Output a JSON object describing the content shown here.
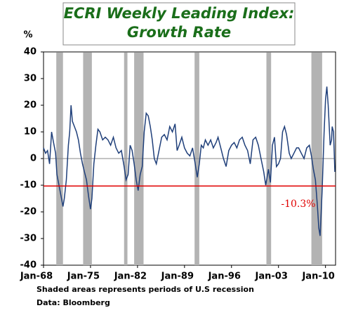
{
  "chart_data": {
    "type": "line",
    "title_lines": [
      "ECRI Weekly Leading Index:",
      "Growth Rate"
    ],
    "y_unit": "%",
    "footnotes": [
      "Shaded areas represents periods of U.S recession",
      "Data: Bloomberg"
    ],
    "x": [
      1968.0,
      1968.3,
      1968.6,
      1968.9,
      1969.2,
      1969.5,
      1969.8,
      1970.0,
      1970.3,
      1970.6,
      1970.9,
      1971.1,
      1971.4,
      1971.7,
      1971.9,
      1972.1,
      1972.3,
      1972.6,
      1972.9,
      1973.2,
      1973.5,
      1973.8,
      1974.1,
      1974.4,
      1974.7,
      1975.0,
      1975.2,
      1975.5,
      1975.8,
      1976.1,
      1976.4,
      1976.8,
      1977.2,
      1977.6,
      1978.0,
      1978.4,
      1978.8,
      1979.2,
      1979.6,
      1980.0,
      1980.3,
      1980.6,
      1980.9,
      1981.2,
      1981.5,
      1981.8,
      1982.1,
      1982.4,
      1982.7,
      1983.0,
      1983.3,
      1983.6,
      1983.9,
      1984.2,
      1984.5,
      1984.8,
      1985.2,
      1985.6,
      1986.0,
      1986.4,
      1986.8,
      1987.2,
      1987.6,
      1987.9,
      1988.2,
      1988.6,
      1989.0,
      1989.4,
      1989.8,
      1990.2,
      1990.6,
      1990.9,
      1991.2,
      1991.5,
      1991.8,
      1992.1,
      1992.5,
      1992.9,
      1993.3,
      1993.7,
      1994.0,
      1994.4,
      1994.8,
      1995.2,
      1995.6,
      1996.0,
      1996.4,
      1996.8,
      1997.2,
      1997.6,
      1998.0,
      1998.4,
      1998.8,
      1999.2,
      1999.6,
      2000.0,
      2000.4,
      2000.8,
      2001.1,
      2001.5,
      2001.8,
      2002.1,
      2002.4,
      2002.7,
      2003.0,
      2003.3,
      2003.6,
      2003.9,
      2004.2,
      2004.6,
      2004.9,
      2005.3,
      2005.7,
      2006.0,
      2006.4,
      2006.8,
      2007.2,
      2007.6,
      2007.9,
      2008.2,
      2008.5,
      2008.8,
      2009.0,
      2009.2,
      2009.5,
      2009.8,
      2010.0,
      2010.2,
      2010.4,
      2010.7,
      2010.9,
      2011.0,
      2011.2,
      2011.4
    ],
    "values": [
      4,
      2,
      3,
      -2,
      10,
      6,
      2,
      -6,
      -10,
      -14,
      -18,
      -15,
      -8,
      5,
      10,
      20,
      14,
      12,
      10,
      7,
      2,
      -2,
      -5,
      -8,
      -14,
      -19,
      -15,
      -2,
      5,
      11,
      10,
      7,
      8,
      7,
      5,
      8,
      4,
      2,
      3,
      -3,
      -8,
      -6,
      5,
      3,
      -2,
      -8,
      -12,
      -6,
      -3,
      10,
      17,
      16,
      12,
      7,
      0,
      -2,
      3,
      8,
      9,
      7,
      12,
      10,
      13,
      3,
      5,
      8,
      4,
      2,
      1,
      4,
      -2,
      -7,
      -2,
      5,
      4,
      7,
      5,
      7,
      4,
      6,
      8,
      4,
      0,
      -3,
      3,
      5,
      6,
      4,
      7,
      8,
      5,
      3,
      -2,
      7,
      8,
      5,
      0,
      -5,
      -10,
      -4,
      -9,
      5,
      8,
      -3,
      -2,
      0,
      10,
      12,
      9,
      2,
      0,
      2,
      4,
      4,
      2,
      0,
      4,
      5,
      1,
      -4,
      -8,
      -18,
      -26,
      -29,
      -12,
      10,
      22,
      27,
      20,
      5,
      7,
      12,
      10,
      -5
    ],
    "color": "#1f3f7a",
    "recessions": [
      [
        1969.9,
        1970.9
      ],
      [
        1973.9,
        1975.2
      ],
      [
        1980.0,
        1980.5
      ],
      [
        1981.5,
        1982.9
      ],
      [
        1990.5,
        1991.2
      ],
      [
        2001.2,
        2001.9
      ],
      [
        2007.9,
        2009.5
      ]
    ],
    "recession_color": "#b3b3b3",
    "threshold": {
      "value": -10.3,
      "label": "-10.3%"
    },
    "threshold_color": "#e00000",
    "xlim": [
      1968,
      2011.5
    ],
    "xticks": [
      {
        "value": 1968,
        "label": "Jan-68"
      },
      {
        "value": 1975,
        "label": "Jan-75"
      },
      {
        "value": 1982,
        "label": "Jan-82"
      },
      {
        "value": 1989,
        "label": "Jan-89"
      },
      {
        "value": 1996,
        "label": "Jan-96"
      },
      {
        "value": 2003,
        "label": "Jan-03"
      },
      {
        "value": 2010,
        "label": "Jan-10"
      }
    ],
    "ylim": [
      -40,
      40
    ],
    "yticks": [
      -40,
      -30,
      -20,
      -10,
      0,
      10,
      20,
      30,
      40
    ]
  }
}
